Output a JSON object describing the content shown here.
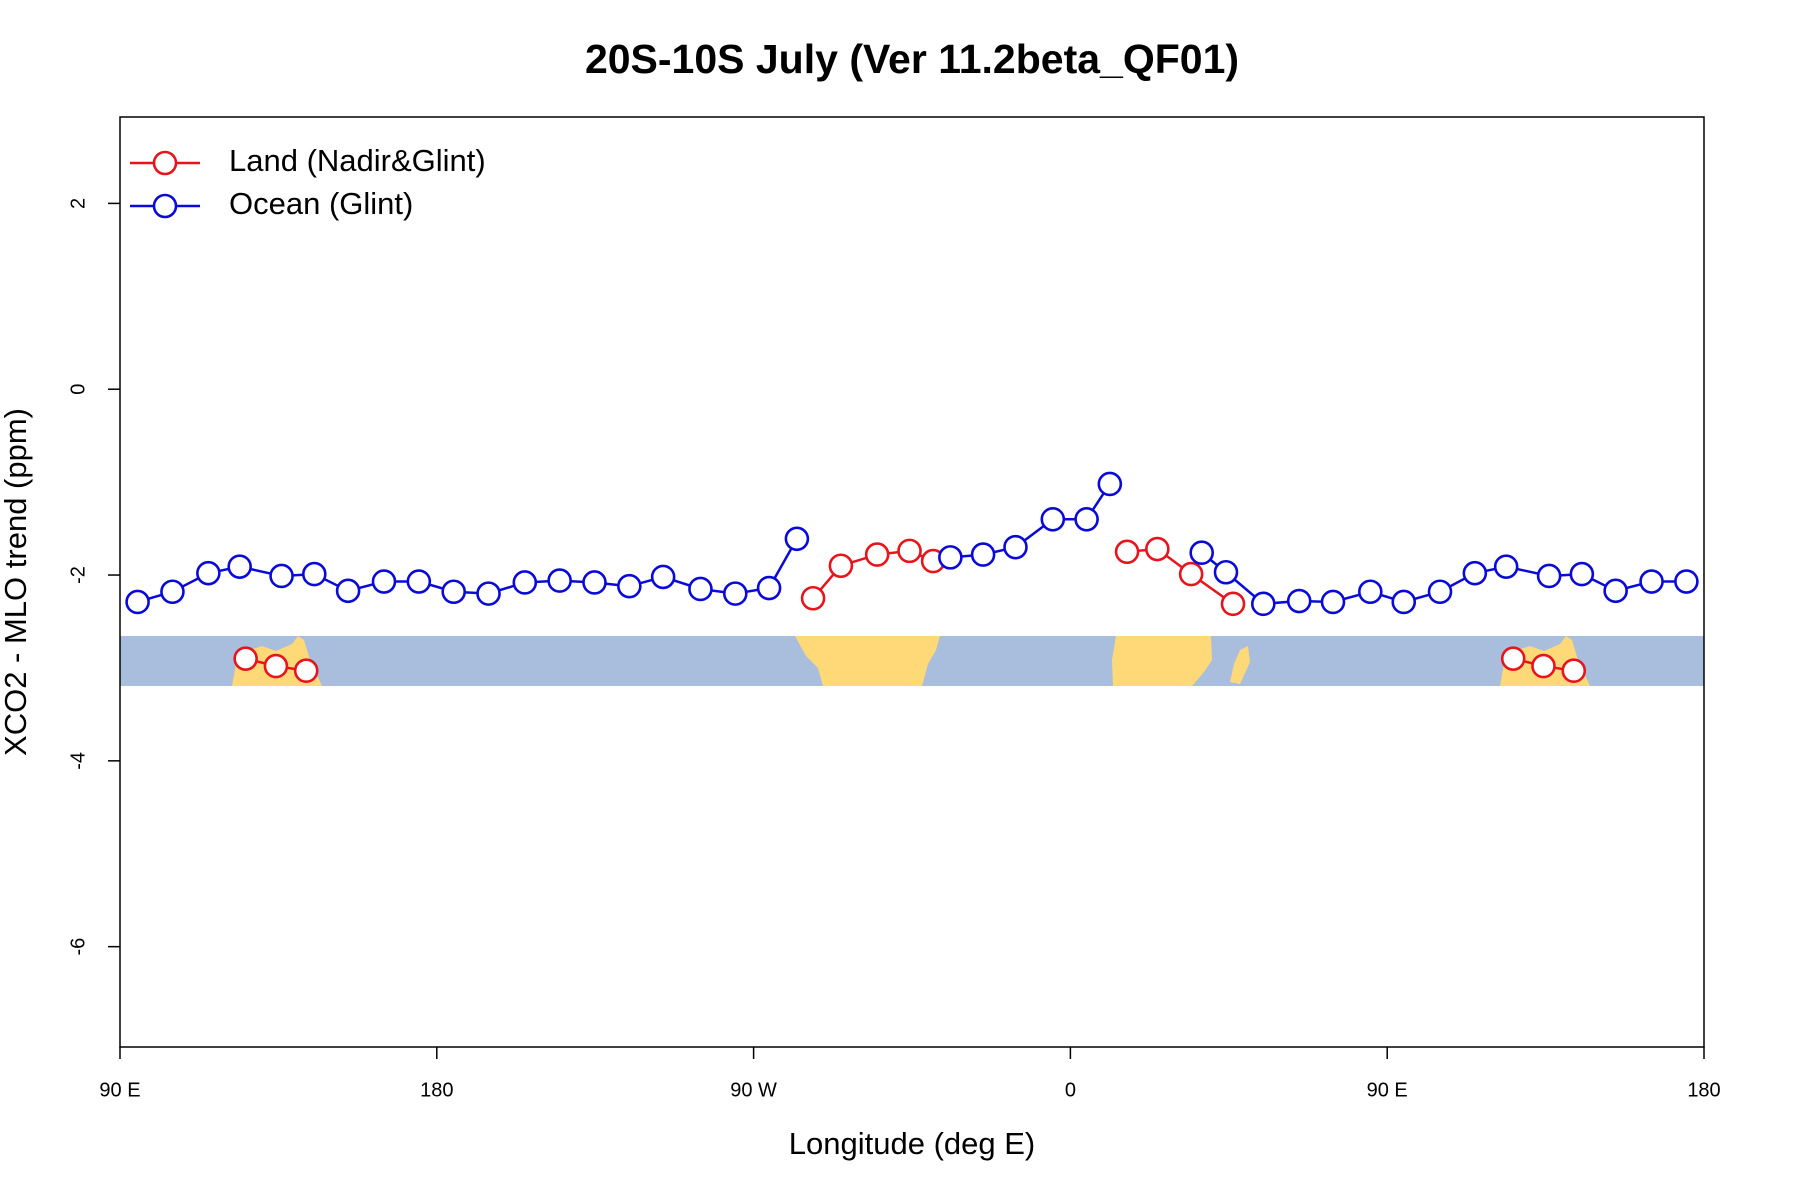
{
  "chart_data": {
    "type": "line",
    "title": "20S-10S July (Ver 11.2beta_QF01)",
    "x_label": "Longitude (deg E)",
    "y_label": "XCO2 - MLO trend (ppm)",
    "xlim": [
      90,
      540
    ],
    "ylim": [
      -7.08,
      2.93
    ],
    "xticks": [
      {
        "value": 90,
        "label": "90 E"
      },
      180,
      {
        "value": 270,
        "label": "90 W"
      },
      {
        "value": 360,
        "label": "0"
      },
      {
        "value": 450,
        "label": "90 E"
      },
      {
        "value": 540,
        "label": "180"
      }
    ],
    "yticks": [
      -6,
      -4,
      -2,
      0,
      2
    ],
    "legend": "top-left",
    "series": [
      {
        "name": "Land (Nadir&Glint)",
        "color": "#e8141c",
        "x": [
          125.7,
          134.3,
          142.9,
          null,
          286.9,
          294.8,
          305.1,
          314.3,
          321.0,
          null,
          376.1,
          384.7,
          394.3,
          406.2,
          null,
          485.8,
          494.4,
          503.0
        ],
        "values": [
          -2.9,
          -2.98,
          -3.03,
          null,
          -2.25,
          -1.9,
          -1.78,
          -1.74,
          -1.85,
          null,
          -1.75,
          -1.72,
          -1.99,
          -2.31,
          null,
          -2.9,
          -2.98,
          -3.03
        ]
      },
      {
        "name": "Ocean (Glint)",
        "color": "#0a0ad8",
        "x": [
          95.0,
          104.9,
          115.1,
          124.0,
          135.9,
          145.2,
          154.8,
          165.0,
          174.9,
          184.8,
          194.7,
          205.0,
          214.9,
          224.8,
          234.7,
          244.3,
          254.9,
          264.8,
          274.4,
          282.3,
          null,
          325.9,
          335.2,
          344.4,
          355.0,
          364.6,
          371.2,
          null,
          397.3,
          404.2,
          414.8,
          425.0,
          434.6,
          445.2,
          454.7,
          465.0,
          474.9,
          483.8,
          496.0,
          505.3,
          514.9,
          525.1,
          535.0
        ],
        "values": [
          -2.29,
          -2.18,
          -1.98,
          -1.91,
          -2.01,
          -1.99,
          -2.17,
          -2.07,
          -2.07,
          -2.18,
          -2.2,
          -2.08,
          -2.06,
          -2.08,
          -2.12,
          -2.02,
          -2.15,
          -2.2,
          -2.14,
          -1.61,
          null,
          -1.81,
          -1.78,
          -1.7,
          -1.4,
          -1.4,
          -1.02,
          null,
          -1.76,
          -1.97,
          -2.31,
          -2.28,
          -2.29,
          -2.18,
          -2.29,
          -2.18,
          -1.98,
          -1.91,
          -2.01,
          -1.99,
          -2.17,
          -2.07,
          -2.07
        ]
      }
    ]
  }
}
